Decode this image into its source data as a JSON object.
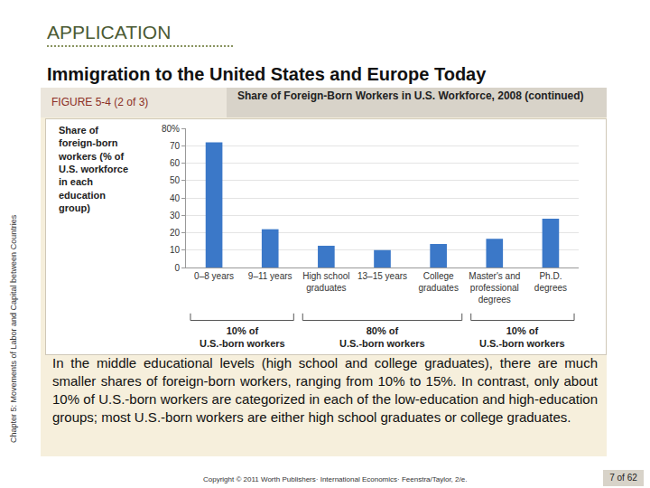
{
  "header": "APPLICATION",
  "title": "Immigration to the United States and Europe Today",
  "figure_label": "FIGURE 5-4 (2 of 3)",
  "figure_title": "Share of Foreign-Born Workers in U.S. Workforce, 2008 (continued)",
  "side_text": "Chapter 5: Movements of Labor and Capital between Countries",
  "chart_data": {
    "type": "bar",
    "y_label": "Share of foreign-born workers (% of U.S. workforce in each education group)",
    "categories": [
      "0–8 years",
      "9–11 years",
      "High school graduates",
      "13–15 years",
      "College graduates",
      "Master's and professional degrees",
      "Ph.D. degrees"
    ],
    "values": [
      72,
      22,
      12.5,
      10,
      13.5,
      16.5,
      28
    ],
    "color": "#3b78c8",
    "ylim": [
      0,
      80
    ],
    "yticks": [
      0,
      10,
      20,
      30,
      40,
      50,
      60,
      70,
      {
        "value": 80,
        "label": "80%"
      }
    ],
    "grid": true,
    "groups": [
      {
        "label": [
          "10% of",
          "U.S.-born workers"
        ],
        "from": "0–8 years",
        "to": "9–11 years"
      },
      {
        "label": [
          "80% of",
          "U.S.-born workers"
        ],
        "from": "High school graduates",
        "to": "College graduates"
      },
      {
        "label": [
          "10% of",
          "U.S.-born workers"
        ],
        "from": "Master's and professional degrees",
        "to": "Ph.D. degrees"
      }
    ]
  },
  "caption": "In the middle educational levels (high school and college graduates), there are much smaller shares of foreign-born workers, ranging from 10% to 15%. In contrast, only about 10% of U.S.-born workers are categorized in each of the low-education and high-education groups; most U.S.-born workers are either high school graduates or college graduates.",
  "footer": "Copyright © 2011 Worth Publishers· International Economics· Feenstra/Taylor, 2/e.",
  "page": "7 of 62"
}
